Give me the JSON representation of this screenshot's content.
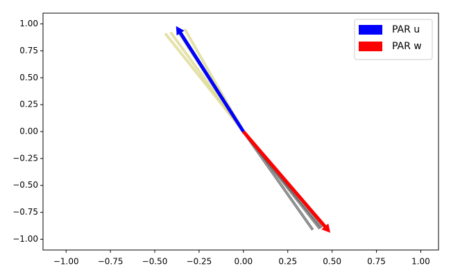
{
  "chart_data": {
    "type": "quiver",
    "xlim": [
      -1.13,
      1.1
    ],
    "ylim": [
      -1.1,
      1.1
    ],
    "xticks": [
      {
        "value": -1,
        "label": "−1.00"
      },
      {
        "value": -0.75,
        "label": "−0.75"
      },
      {
        "value": -0.5,
        "label": "−0.50"
      },
      {
        "value": -0.25,
        "label": "−0.25"
      },
      {
        "value": 0,
        "label": "0.00"
      },
      {
        "value": 0.25,
        "label": "0.25"
      },
      {
        "value": 0.5,
        "label": "0.50"
      },
      {
        "value": 0.75,
        "label": "0.75"
      },
      {
        "value": 1,
        "label": "1.00"
      }
    ],
    "yticks": [
      {
        "value": -1,
        "label": "−1.00"
      },
      {
        "value": -0.75,
        "label": "−0.75"
      },
      {
        "value": -0.5,
        "label": "−0.50"
      },
      {
        "value": -0.25,
        "label": "−0.25"
      },
      {
        "value": 0,
        "label": "0.00"
      },
      {
        "value": 0.25,
        "label": "0.25"
      },
      {
        "value": 0.5,
        "label": "0.50"
      },
      {
        "value": 0.75,
        "label": "0.75"
      },
      {
        "value": 1,
        "label": "1.00"
      }
    ],
    "traces": [
      {
        "color": "#d6d27a",
        "x": [
          -0.44,
          -0.41,
          -0.37,
          -0.33
        ],
        "y": [
          0.91,
          0.92,
          0.93,
          0.95
        ]
      },
      {
        "color": "#555555",
        "x": [
          0.39,
          0.43,
          0.44
        ],
        "y": [
          -0.91,
          -0.9,
          -0.89
        ]
      }
    ],
    "series": [
      {
        "name": "PAR u",
        "color": "#0000ff",
        "x": [
          -0.38
        ],
        "y": [
          0.98
        ]
      },
      {
        "name": "PAR w",
        "color": "#ff0000",
        "x": [
          0.49
        ],
        "y": [
          -0.94
        ]
      }
    ],
    "legend": "upper right"
  }
}
